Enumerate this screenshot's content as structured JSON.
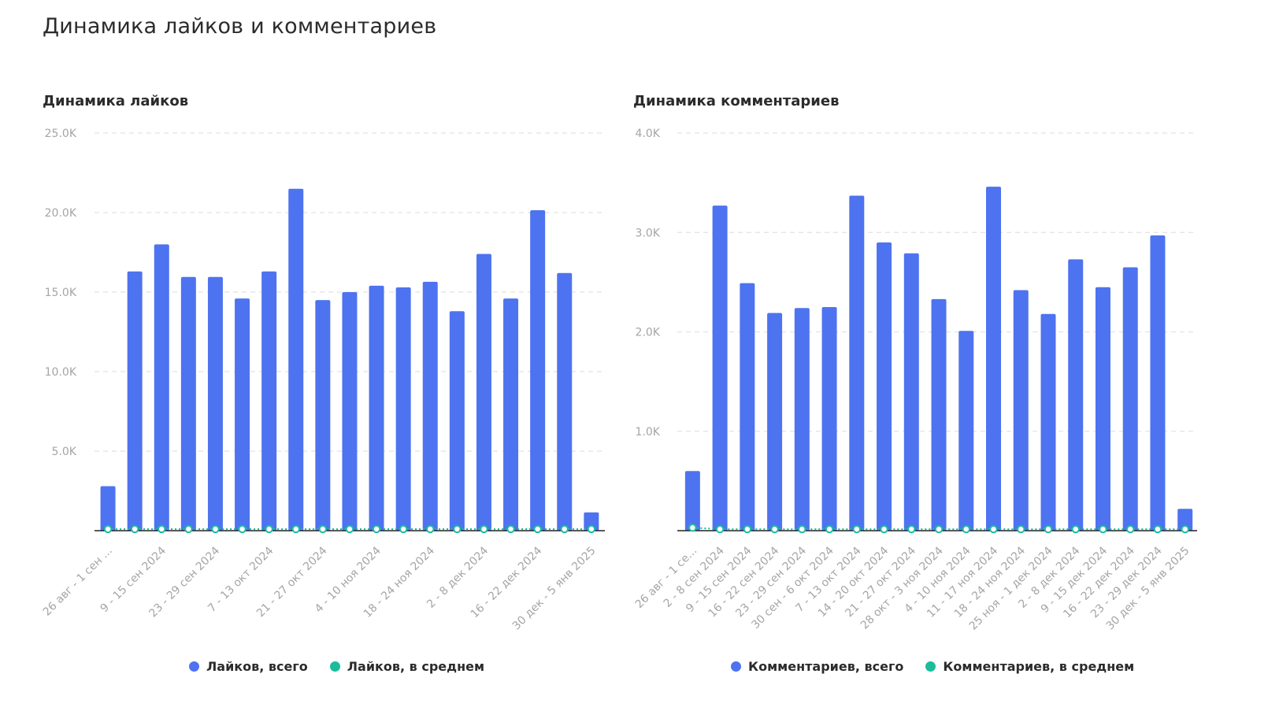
{
  "page": {
    "title": "Динамика лайков и комментариев"
  },
  "colors": {
    "total": "#4e73f0",
    "average": "#1abc9c",
    "grid": "#e2e2e2",
    "tick": "#a5a5a5"
  },
  "chart_data": [
    {
      "type": "bar",
      "title": "Динамика лайков",
      "y_ticks": [
        "25.0K",
        "20.0K",
        "15.0K",
        "10.0K",
        "5.0K"
      ],
      "ylim": [
        0,
        25000
      ],
      "grid": true,
      "legend_position": "bottom",
      "categories": [
        "26 авг - 1 сен 2024",
        "2 - 8 сен 2024",
        "9 - 15 сен 2024",
        "16 - 22 сен 2024",
        "23 - 29 сен 2024",
        "30 сен - 6 окт 2024",
        "7 - 13 окт 2024",
        "14 - 20 окт 2024",
        "21 - 27 окт 2024",
        "28 окт - 3 ноя 2024",
        "4 - 10 ноя 2024",
        "11 - 17 ноя 2024",
        "18 - 24 ноя 2024",
        "25 ноя - 1 дек 2024",
        "2 - 8 дек 2024",
        "9 - 15 дек 2024",
        "16 - 22 дек 2024",
        "23 - 29 дек 2024",
        "30 дек - 5 янв 2025"
      ],
      "x_tick_labels": [
        "26 авг - 1 сен ...",
        "",
        "9 - 15 сен 2024",
        "",
        "23 - 29 сен 2024",
        "",
        "7 - 13 окт 2024",
        "",
        "21 - 27 окт 2024",
        "",
        "4 - 10 ноя 2024",
        "",
        "18 - 24 ноя 2024",
        "",
        "2 - 8 дек 2024",
        "",
        "16 - 22 дек 2024",
        "",
        "30 дек - 5 янв 2025"
      ],
      "series": [
        {
          "name": "Лайков, всего",
          "color": "#4e73f0",
          "values": [
            2800,
            16300,
            18000,
            15950,
            15950,
            14600,
            16300,
            21500,
            14500,
            15000,
            15400,
            15300,
            15650,
            13800,
            17400,
            14600,
            20150,
            16200,
            1150
          ]
        },
        {
          "name": "Лайков, в среднем",
          "color": "#1abc9c",
          "values": [
            100,
            100,
            100,
            100,
            100,
            100,
            100,
            100,
            100,
            100,
            100,
            100,
            100,
            100,
            100,
            100,
            100,
            100,
            100
          ]
        }
      ]
    },
    {
      "type": "bar",
      "title": "Динамика комментариев",
      "y_ticks": [
        "4.0K",
        "3.0K",
        "2.0K",
        "1.0K"
      ],
      "ylim": [
        0,
        4000
      ],
      "grid": true,
      "legend_position": "bottom",
      "categories": [
        "26 авг - 1 сен 2024",
        "2 - 8 сен 2024",
        "9 - 15 сен 2024",
        "16 - 22 сен 2024",
        "23 - 29 сен 2024",
        "30 сен - 6 окт 2024",
        "7 - 13 окт 2024",
        "14 - 20 окт 2024",
        "21 - 27 окт 2024",
        "28 окт - 3 ноя 2024",
        "4 - 10 ноя 2024",
        "11 - 17 ноя 2024",
        "18 - 24 ноя 2024",
        "25 ноя - 1 дек 2024",
        "2 - 8 дек 2024",
        "9 - 15 дек 2024",
        "16 - 22 дек 2024",
        "23 - 29 дек 2024",
        "30 дек - 5 янв 2025"
      ],
      "x_tick_labels": [
        "26 авг - 1 се...",
        "2 - 8 сен 2024",
        "9 - 15 сен 2024",
        "16 - 22 сен 2024",
        "23 - 29 сен 2024",
        "30 сен - 6 окт 2024",
        "7 - 13 окт 2024",
        "14 - 20 окт 2024",
        "21 - 27 окт 2024",
        "28 окт - 3 ноя 2024",
        "4 - 10 ноя 2024",
        "11 - 17 ноя 2024",
        "18 - 24 ноя 2024",
        "25 ноя - 1 дек 2024",
        "2 - 8 дек 2024",
        "9 - 15 дек 2024",
        "16 - 22 дек 2024",
        "23 - 29 дек 2024",
        "30 дек - 5 янв 2025"
      ],
      "series": [
        {
          "name": "Комментариев, всего",
          "color": "#4e73f0",
          "values": [
            600,
            3270,
            2490,
            2190,
            2240,
            2250,
            3370,
            2900,
            2790,
            2330,
            2010,
            3460,
            2420,
            2180,
            2730,
            2450,
            2650,
            2970,
            220
          ]
        },
        {
          "name": "Комментариев, в среднем",
          "color": "#1abc9c",
          "values": [
            30,
            15,
            15,
            15,
            15,
            15,
            15,
            15,
            15,
            15,
            15,
            15,
            15,
            15,
            15,
            15,
            15,
            15,
            15
          ]
        }
      ]
    }
  ]
}
